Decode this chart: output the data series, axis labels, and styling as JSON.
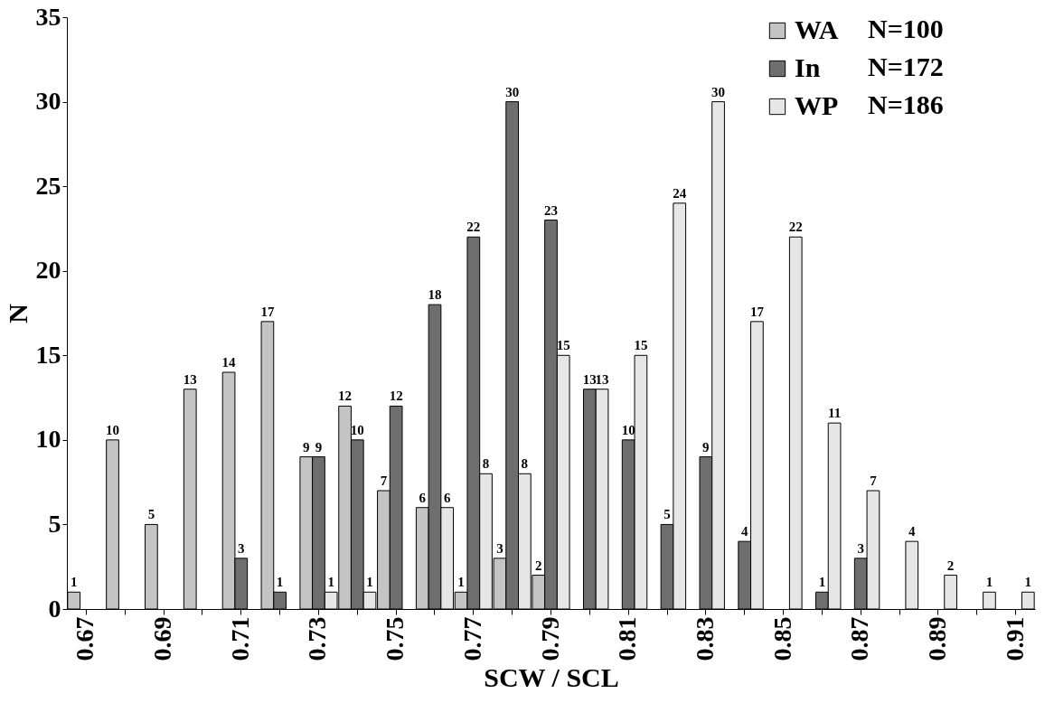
{
  "chart_data": {
    "type": "bar",
    "xlabel": "SCW / SCL",
    "ylabel": "N",
    "categories": [
      "0.67",
      null,
      "0.69",
      null,
      "0.71",
      null,
      "0.73",
      null,
      "0.75",
      null,
      "0.77",
      null,
      "0.79",
      null,
      "0.81",
      null,
      "0.83",
      null,
      "0.85",
      null,
      "0.87",
      null,
      "0.89",
      null,
      "0.91"
    ],
    "series": [
      {
        "name": "WA",
        "color": "#c4c4c4",
        "values": [
          1,
          10,
          5,
          13,
          14,
          17,
          9,
          12,
          7,
          6,
          1,
          3,
          2,
          null,
          null,
          null,
          null,
          null,
          null,
          null,
          null,
          null,
          null,
          null,
          null
        ]
      },
      {
        "name": "In",
        "color": "#6e6e6e",
        "values": [
          null,
          null,
          null,
          null,
          3,
          1,
          9,
          10,
          12,
          18,
          22,
          30,
          23,
          13,
          10,
          5,
          9,
          4,
          null,
          1,
          3,
          null,
          null,
          null,
          null
        ]
      },
      {
        "name": "WP",
        "color": "#e6e6e6",
        "values": [
          null,
          null,
          null,
          null,
          null,
          null,
          1,
          1,
          null,
          6,
          8,
          8,
          15,
          13,
          15,
          24,
          30,
          17,
          22,
          11,
          7,
          4,
          2,
          1,
          1
        ]
      }
    ],
    "annotations": [
      "N=100",
      "N=172",
      "N=186"
    ],
    "ylim": [
      0,
      35
    ],
    "yticks": [
      0,
      5,
      10,
      15,
      20,
      25,
      30,
      35
    ],
    "grid": false,
    "legend": "top right",
    "data_labels": true
  }
}
